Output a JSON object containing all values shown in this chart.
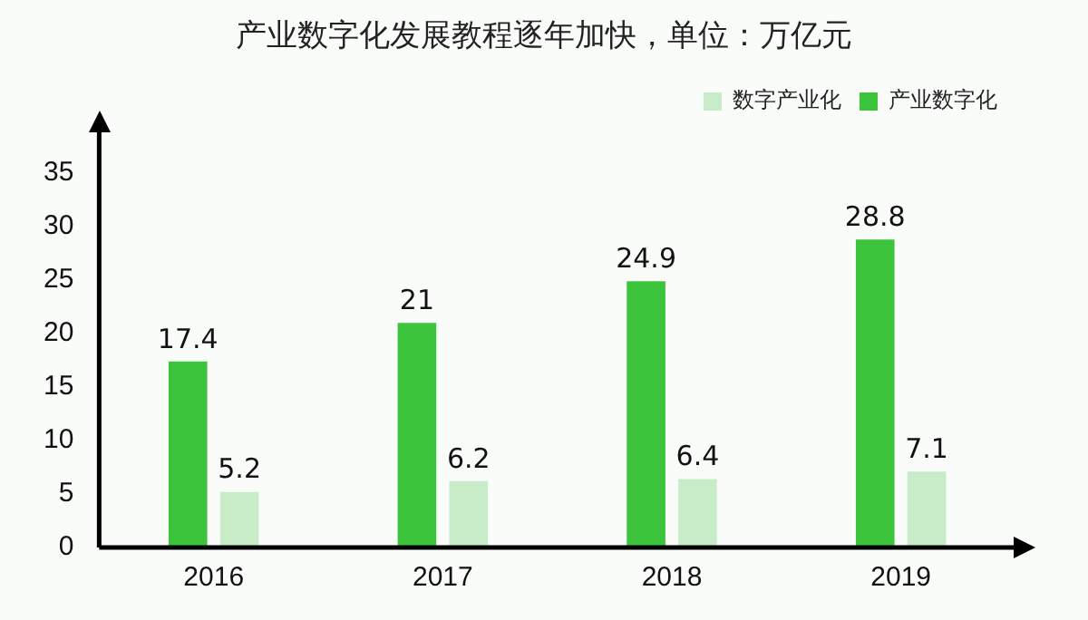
{
  "chart_data": {
    "type": "bar",
    "title": "产业数字化发展教程逐年加快，单位：万亿元",
    "categories": [
      "2016",
      "2017",
      "2018",
      "2019"
    ],
    "series": [
      {
        "name": "产业数字化",
        "color": "#3cc43c",
        "values": [
          17.4,
          21,
          24.9,
          28.8
        ]
      },
      {
        "name": "数字产业化",
        "color": "#c8ecc8",
        "values": [
          5.2,
          6.2,
          6.4,
          7.1
        ]
      }
    ],
    "ylim": [
      0,
      39
    ],
    "yticks": [
      0,
      5,
      10,
      15,
      20,
      25,
      30,
      35
    ],
    "grid": false,
    "legend": "top right",
    "data_labels": true
  }
}
